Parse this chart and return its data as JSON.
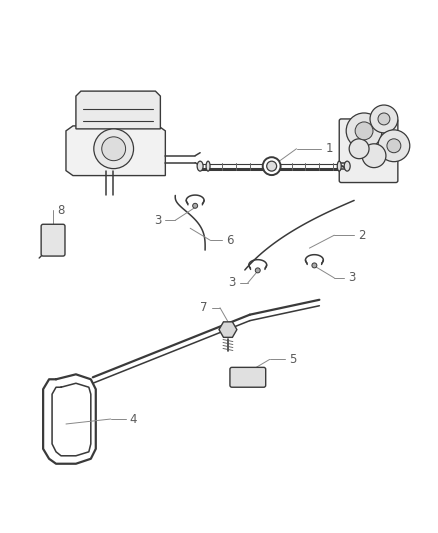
{
  "bg_color": "#ffffff",
  "line_color": "#3a3a3a",
  "label_color": "#5a5a5a",
  "callout_color": "#888888",
  "fig_width": 4.38,
  "fig_height": 5.33,
  "dpi": 100,
  "xlim": [
    0,
    438
  ],
  "ylim": [
    0,
    533
  ]
}
